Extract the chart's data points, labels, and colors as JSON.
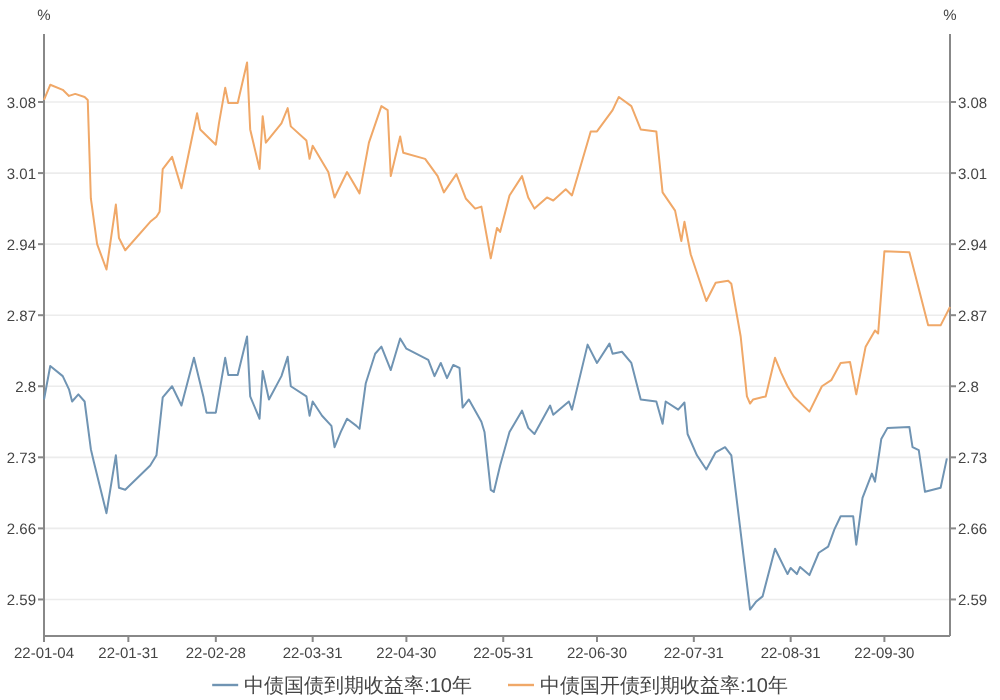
{
  "chart_data": {
    "type": "line",
    "ylabel": "%",
    "y2label": "%",
    "grid": "y",
    "legend": "bottom",
    "xlim": [
      "--01-04",
      "--10-21"
    ],
    "xticks": [
      {
        "value": "--01-04",
        "label": "22-01-04"
      },
      {
        "value": "--01-31",
        "label": "22-01-31"
      },
      {
        "value": "--02-28",
        "label": "22-02-28"
      },
      {
        "value": "--03-31",
        "label": "22-03-31"
      },
      {
        "value": "--04-30",
        "label": "22-04-30"
      },
      {
        "value": "--05-31",
        "label": "22-05-31"
      },
      {
        "value": "--06-30",
        "label": "22-06-30"
      },
      {
        "value": "--07-31",
        "label": "22-07-31"
      },
      {
        "value": "--08-31",
        "label": "22-08-31"
      },
      {
        "value": "--09-30",
        "label": "22-09-30"
      }
    ],
    "ylim": [
      2.554,
      3.147
    ],
    "yticks": [
      2.59,
      2.66,
      2.73,
      2.8,
      2.87,
      2.94,
      3.01,
      3.08
    ],
    "y2lim": [
      2.554,
      3.147
    ],
    "y2ticks": [
      2.59,
      2.66,
      2.73,
      2.8,
      2.87,
      2.94,
      3.01,
      3.08
    ],
    "series": [
      {
        "name": "中债国债到期收益率:10年",
        "color": "#7094b3",
        "x": [
          "--01-04",
          "--01-06",
          "--01-10",
          "--01-12",
          "--01-13",
          "--01-15",
          "--01-17",
          "--01-19",
          "--01-20",
          "--01-24",
          "--01-27",
          "--01-28",
          "--01-30",
          "--02-07",
          "--02-09",
          "--02-11",
          "--02-14",
          "--02-17",
          "--02-21",
          "--02-24",
          "--02-25",
          "--02-28",
          "--03-03",
          "--03-04",
          "--03-07",
          "--03-10",
          "--03-11",
          "--03-14",
          "--03-15",
          "--03-17",
          "--03-21",
          "--03-23",
          "--03-24",
          "--03-29",
          "--03-30",
          "--03-31",
          "--04-03",
          "--04-06",
          "--04-07",
          "--04-09",
          "--04-11",
          "--04-14",
          "--04-15",
          "--04-17",
          "--04-20",
          "--04-22",
          "--04-25",
          "--04-28",
          "--04-30",
          "--05-07",
          "--05-09",
          "--05-11",
          "--05-13",
          "--05-15",
          "--05-17",
          "--05-18",
          "--05-20",
          "--05-24",
          "--05-25",
          "--05-27",
          "--05-28",
          "--05-30",
          "--06-02",
          "--06-06",
          "--06-08",
          "--06-10",
          "--06-15",
          "--06-16",
          "--06-21",
          "--06-22",
          "--06-27",
          "--06-30",
          "--07-04",
          "--07-05",
          "--07-08",
          "--07-11",
          "--07-14",
          "--07-19",
          "--07-21",
          "--07-22",
          "--07-26",
          "--07-28",
          "--07-29",
          "--08-01",
          "--08-04",
          "--08-07",
          "--08-10",
          "--08-12",
          "--08-18",
          "--08-20",
          "--08-22",
          "--08-26",
          "--08-30",
          "--08-31",
          "--09-02",
          "--09-03",
          "--09-06",
          "--09-09",
          "--09-12",
          "--09-14",
          "--09-16",
          "--09-20",
          "--09-21",
          "--09-23",
          "--09-26",
          "--09-27",
          "--09-29",
          "--10-01",
          "--10-08",
          "--10-09",
          "--10-11",
          "--10-13",
          "--10-18",
          "--10-20"
        ],
        "values": [
          2.787,
          2.82,
          2.81,
          2.797,
          2.785,
          2.792,
          2.785,
          2.738,
          2.725,
          2.675,
          2.732,
          2.7,
          2.698,
          2.722,
          2.732,
          2.789,
          2.8,
          2.781,
          2.828,
          2.79,
          2.774,
          2.774,
          2.828,
          2.811,
          2.811,
          2.849,
          2.79,
          2.768,
          2.815,
          2.787,
          2.81,
          2.829,
          2.8,
          2.79,
          2.771,
          2.785,
          2.771,
          2.761,
          2.74,
          2.755,
          2.768,
          2.761,
          2.758,
          2.803,
          2.832,
          2.839,
          2.816,
          2.847,
          2.837,
          2.826,
          2.81,
          2.823,
          2.808,
          2.821,
          2.818,
          2.779,
          2.787,
          2.765,
          2.755,
          2.698,
          2.696,
          2.722,
          2.755,
          2.776,
          2.759,
          2.753,
          2.781,
          2.772,
          2.785,
          2.777,
          2.841,
          2.823,
          2.842,
          2.832,
          2.834,
          2.823,
          2.787,
          2.785,
          2.763,
          2.785,
          2.777,
          2.784,
          2.753,
          2.732,
          2.718,
          2.735,
          2.74,
          2.732,
          2.58,
          2.588,
          2.593,
          2.64,
          2.615,
          2.621,
          2.615,
          2.622,
          2.614,
          2.636,
          2.642,
          2.659,
          2.672,
          2.672,
          2.644,
          2.69,
          2.714,
          2.706,
          2.748,
          2.759,
          2.76,
          2.74,
          2.737,
          2.696,
          2.7,
          2.729
        ]
      },
      {
        "name": "中债国开债到期收益率:10年",
        "color": "#f0a868",
        "x": [
          "--01-04",
          "--01-06",
          "--01-10",
          "--01-12",
          "--01-14",
          "--01-17",
          "--01-18",
          "--01-19",
          "--01-21",
          "--01-24",
          "--01-27",
          "--01-28",
          "--01-30",
          "--02-07",
          "--02-09",
          "--02-10",
          "--02-11",
          "--02-14",
          "--02-17",
          "--02-22",
          "--02-23",
          "--02-28",
          "--03-01",
          "--03-03",
          "--03-04",
          "--03-07",
          "--03-10",
          "--03-11",
          "--03-14",
          "--03-15",
          "--03-16",
          "--03-21",
          "--03-23",
          "--03-24",
          "--03-29",
          "--03-30",
          "--03-31",
          "--04-05",
          "--04-07",
          "--04-11",
          "--04-15",
          "--04-18",
          "--04-22",
          "--04-24",
          "--04-25",
          "--04-28",
          "--04-29",
          "--05-06",
          "--05-10",
          "--05-12",
          "--05-16",
          "--05-19",
          "--05-22",
          "--05-24",
          "--05-27",
          "--05-29",
          "--05-30",
          "--06-02",
          "--06-06",
          "--06-08",
          "--06-10",
          "--06-14",
          "--06-16",
          "--06-20",
          "--06-22",
          "--06-28",
          "--06-30",
          "--07-05",
          "--07-07",
          "--07-11",
          "--07-14",
          "--07-19",
          "--07-21",
          "--07-25",
          "--07-27",
          "--07-28",
          "--07-30",
          "--08-04",
          "--08-07",
          "--08-11",
          "--08-12",
          "--08-15",
          "--08-17",
          "--08-18",
          "--08-19",
          "--08-23",
          "--08-26",
          "--08-28",
          "--08-30",
          "--09-01",
          "--09-06",
          "--09-10",
          "--09-13",
          "--09-16",
          "--09-19",
          "--09-21",
          "--09-24",
          "--09-27",
          "--09-28",
          "--09-30",
          "--10-08",
          "--10-10",
          "--10-14",
          "--10-18",
          "--10-21"
        ],
        "values": [
          3.082,
          3.097,
          3.092,
          3.086,
          3.088,
          3.085,
          3.082,
          2.985,
          2.94,
          2.915,
          2.979,
          2.946,
          2.934,
          2.962,
          2.967,
          2.972,
          3.014,
          3.026,
          2.995,
          3.069,
          3.053,
          3.038,
          3.059,
          3.094,
          3.079,
          3.079,
          3.119,
          3.053,
          3.014,
          3.066,
          3.04,
          3.059,
          3.074,
          3.056,
          3.042,
          3.024,
          3.037,
          3.011,
          2.986,
          3.011,
          2.99,
          3.04,
          3.076,
          3.072,
          3.007,
          3.046,
          3.03,
          3.024,
          3.007,
          2.991,
          3.009,
          2.985,
          2.975,
          2.977,
          2.926,
          2.956,
          2.952,
          2.988,
          3.007,
          2.986,
          2.975,
          2.986,
          2.983,
          2.994,
          2.988,
          3.051,
          3.051,
          3.072,
          3.085,
          3.076,
          3.053,
          3.051,
          2.991,
          2.973,
          2.943,
          2.962,
          2.93,
          2.884,
          2.902,
          2.904,
          2.901,
          2.849,
          2.79,
          2.783,
          2.787,
          2.79,
          2.828,
          2.813,
          2.8,
          2.79,
          2.775,
          2.8,
          2.806,
          2.823,
          2.824,
          2.792,
          2.839,
          2.855,
          2.852,
          2.933,
          2.932,
          2.908,
          2.86,
          2.86,
          2.878
        ]
      }
    ]
  }
}
